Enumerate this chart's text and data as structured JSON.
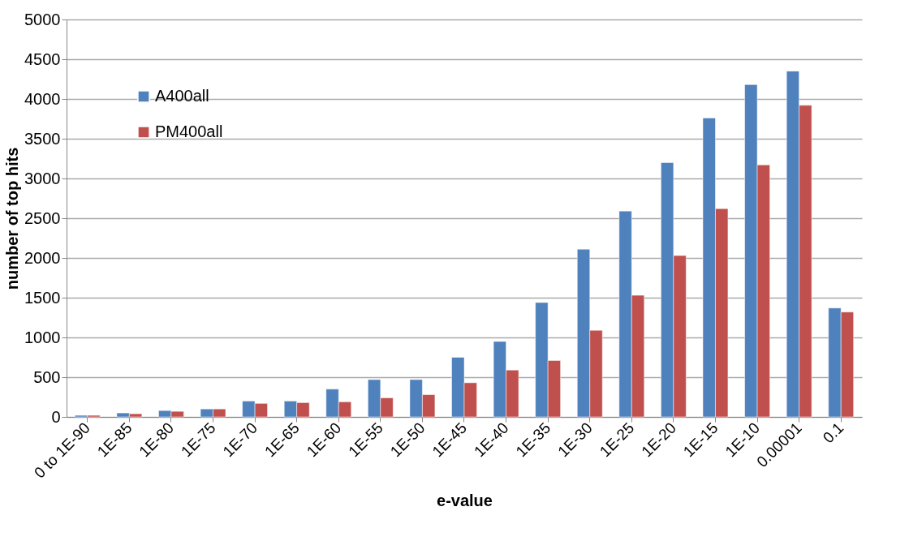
{
  "chart_data": {
    "type": "bar",
    "xlabel": "e-value",
    "ylabel": "number of top hits",
    "categories": [
      "0 to 1E-90",
      "1E-85",
      "1E-80",
      "1E-75",
      "1E-70",
      "1E-65",
      "1E-60",
      "1E-55",
      "1E-50",
      "1E-45",
      "1E-40",
      "1E-35",
      "1E-30",
      "1E-25",
      "1E-20",
      "1E-15",
      "1E-10",
      "0.00001",
      "0.1"
    ],
    "series": [
      {
        "name": "A400all",
        "color": "#4f81bd",
        "values": [
          20,
          50,
          80,
          100,
          200,
          200,
          350,
          470,
          470,
          750,
          950,
          1440,
          2110,
          2590,
          3200,
          3760,
          4180,
          4350,
          1370
        ]
      },
      {
        "name": "PM400all",
        "color": "#c0504d",
        "values": [
          20,
          40,
          70,
          100,
          170,
          180,
          190,
          240,
          280,
          430,
          590,
          710,
          1090,
          1530,
          2030,
          2620,
          3170,
          3920,
          1320
        ]
      }
    ],
    "ylim": [
      0,
      5000
    ],
    "yticks": [
      0,
      500,
      1000,
      1500,
      2000,
      2500,
      3000,
      3500,
      4000,
      4500,
      5000
    ],
    "grid": "y",
    "legend": "top left"
  }
}
